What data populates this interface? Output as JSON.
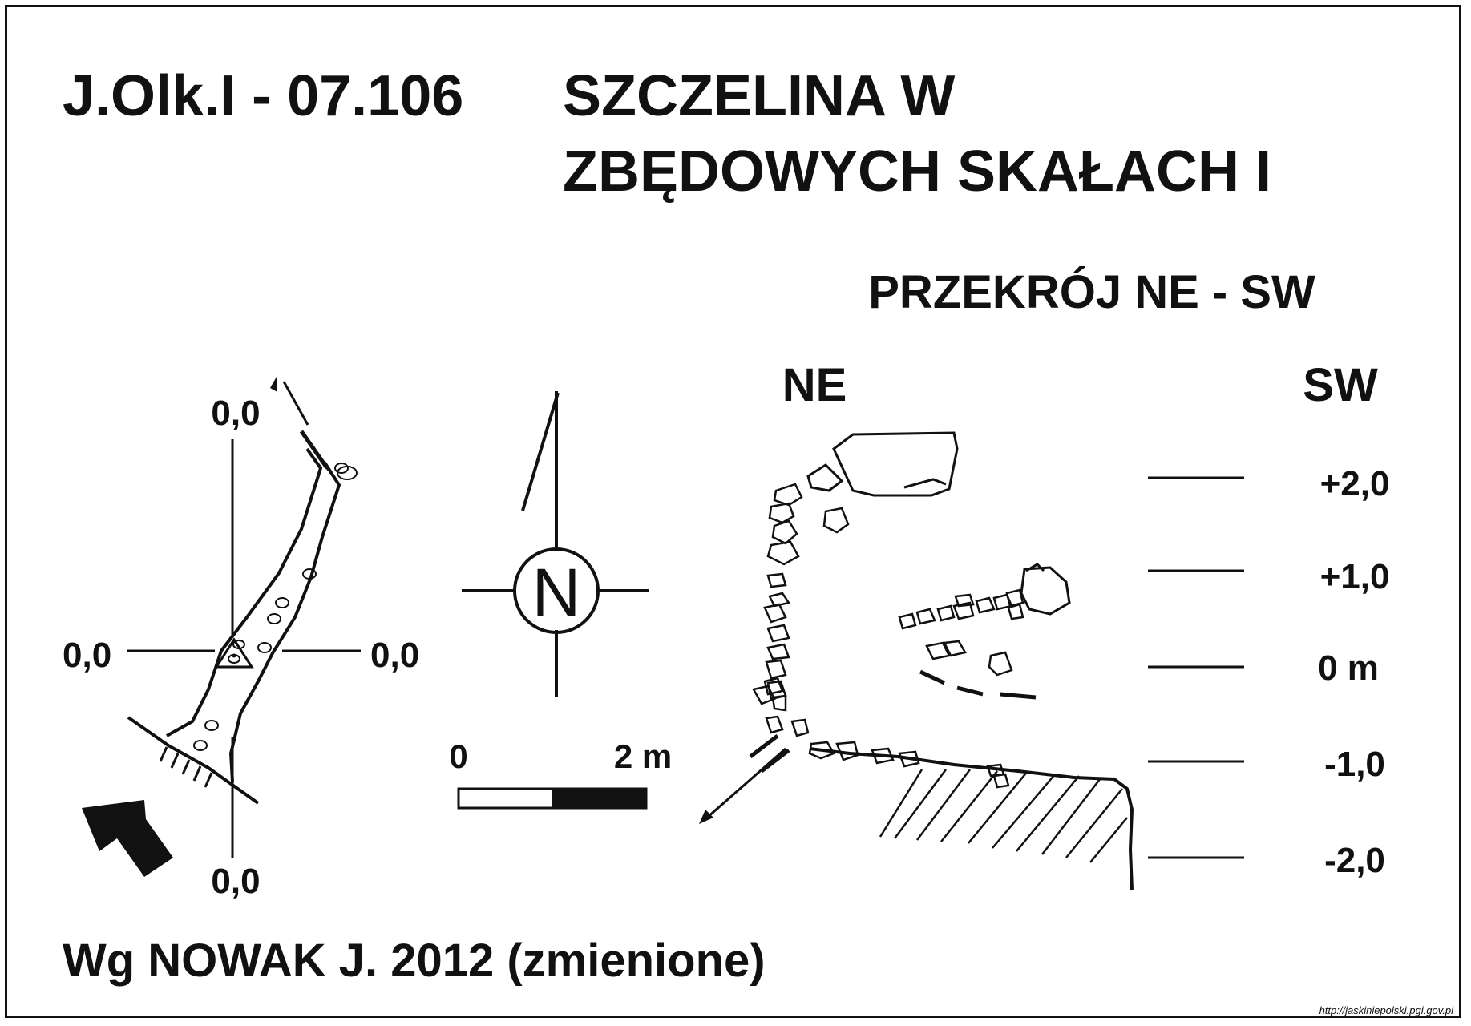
{
  "title": {
    "code": "J.Olk.I - 07.106",
    "name_line1": "SZCZELINA W",
    "name_line2": "ZBĘDOWYCH SKAŁACH I"
  },
  "plan": {
    "datum_top": "0,0",
    "datum_left": "0,0",
    "datum_right": "0,0",
    "datum_bottom": "0,0"
  },
  "compass": {
    "north_letter": "N"
  },
  "scale_bar": {
    "start_label": "0",
    "end_label": "2 m"
  },
  "section": {
    "title": "PRZEKRÓJ NE - SW",
    "left_direction": "NE",
    "right_direction": "SW",
    "levels": [
      "+2,0",
      "+1,0",
      "0 m",
      "-1,0",
      "-2,0"
    ]
  },
  "author": "Wg NOWAK J. 2012 (zmienione)",
  "source": "http://jaskiniepolski.pgi.gov.pl"
}
